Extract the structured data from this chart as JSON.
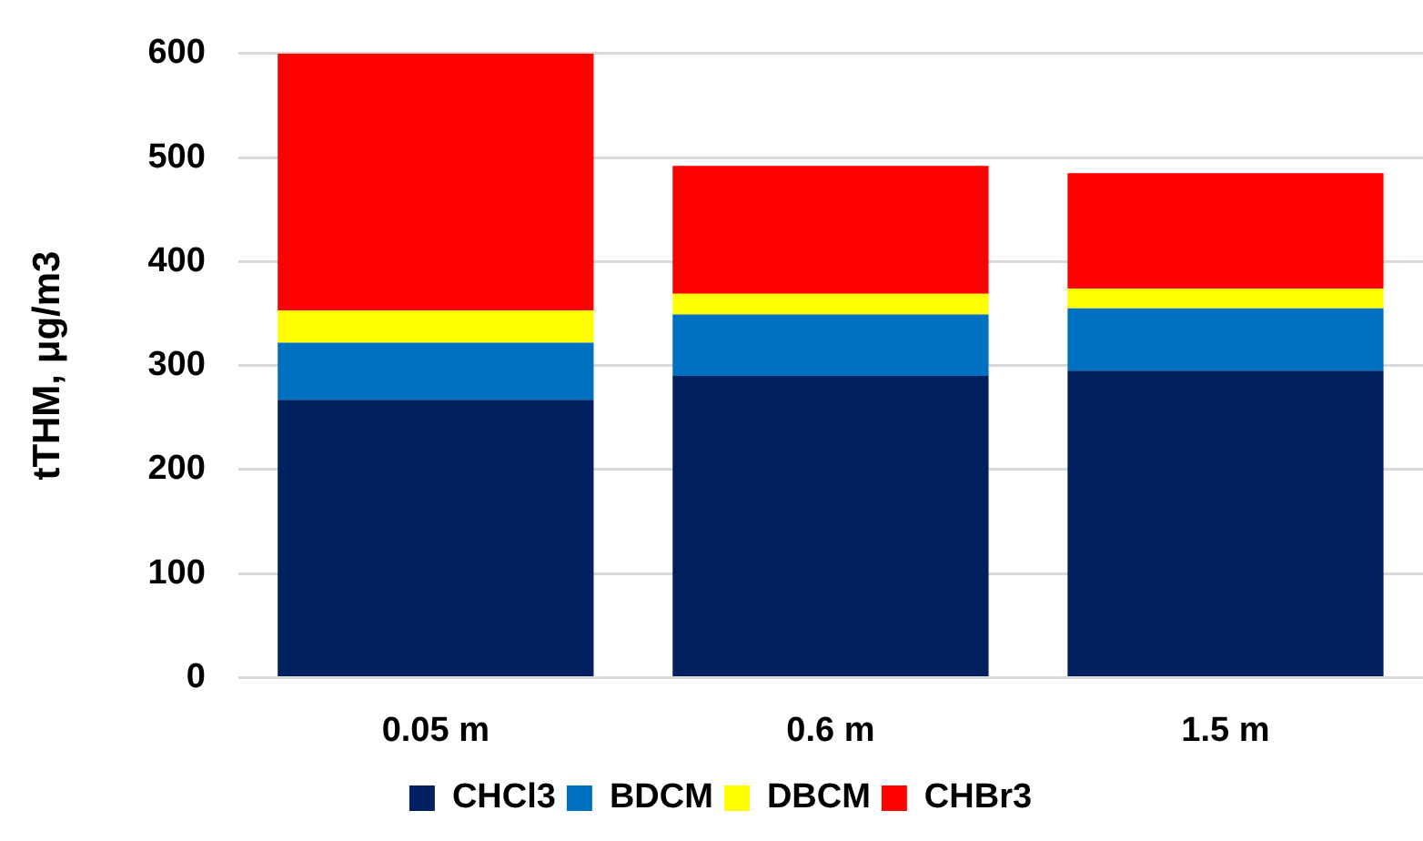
{
  "chart_data": {
    "type": "bar",
    "stacked": true,
    "ylabel": "tTHM, μg/m3",
    "categories": [
      "0.05 m",
      "0.6 m",
      "1.5 m"
    ],
    "series": [
      {
        "name": "CHCl3",
        "color": "#002060",
        "values": [
          267,
          290,
          295
        ]
      },
      {
        "name": "BDCM",
        "color": "#0070c0",
        "values": [
          55,
          59,
          60
        ]
      },
      {
        "name": "DBCM",
        "color": "#ffff00",
        "values": [
          31,
          20,
          19
        ]
      },
      {
        "name": "CHBr3",
        "color": "#ff0000",
        "values": [
          247,
          123,
          111
        ]
      }
    ],
    "ylim": [
      0,
      600
    ],
    "yticks": [
      0,
      100,
      200,
      300,
      400,
      500,
      600
    ],
    "grid": "y",
    "legend": "bottom"
  }
}
